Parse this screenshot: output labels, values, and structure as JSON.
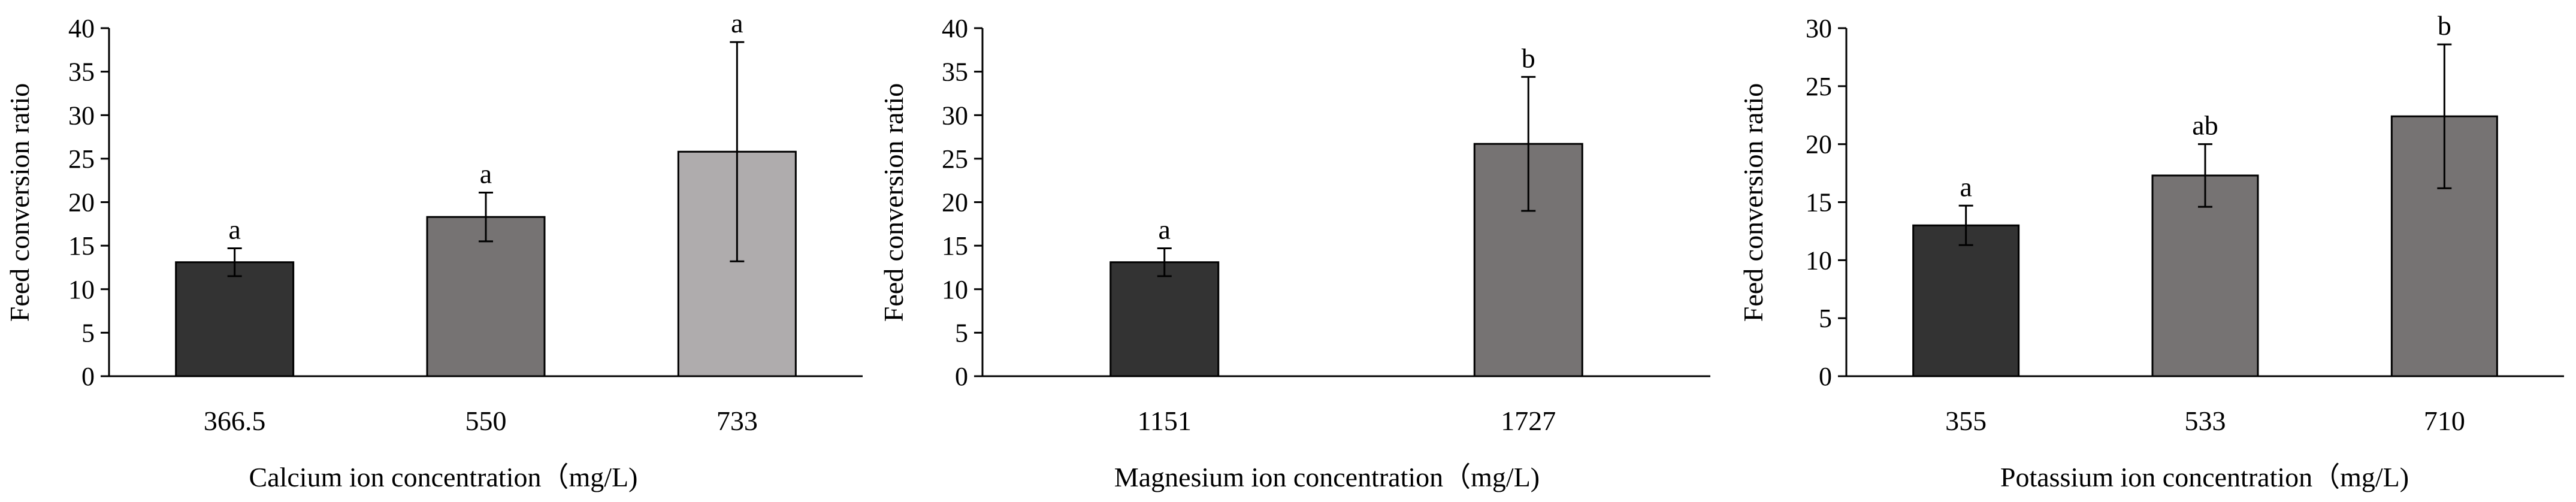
{
  "chart_data": [
    {
      "type": "bar",
      "xlabel": "Calcium ion concentration（mg/L)",
      "ylabel": "Feed conversion ratio",
      "categories": [
        "366.5",
        "550",
        "733"
      ],
      "values": [
        13.1,
        18.3,
        25.8
      ],
      "errors": [
        1.6,
        2.8,
        12.6
      ],
      "significance": [
        "a",
        "a",
        "a"
      ],
      "colors": [
        "#333333",
        "#767373",
        "#afacad"
      ],
      "ylim": [
        0,
        40
      ],
      "yticks": [
        0,
        5,
        10,
        15,
        20,
        25,
        30,
        35,
        40
      ],
      "grid": false,
      "legend": "none"
    },
    {
      "type": "bar",
      "xlabel": "Magnesium ion concentration（mg/L)",
      "ylabel": "Feed conversion ratio",
      "categories": [
        "1151",
        "1727"
      ],
      "values": [
        13.1,
        26.7
      ],
      "errors": [
        1.6,
        7.7
      ],
      "significance": [
        "a",
        "b"
      ],
      "colors": [
        "#333333",
        "#767373"
      ],
      "ylim": [
        0,
        40
      ],
      "yticks": [
        0,
        5,
        10,
        15,
        20,
        25,
        30,
        35,
        40
      ],
      "grid": false,
      "legend": "none"
    },
    {
      "type": "bar",
      "xlabel": "Potassium ion concentration（mg/L)",
      "ylabel": "Feed conversion ratio",
      "categories": [
        "355",
        "533",
        "710"
      ],
      "values": [
        13.0,
        17.3,
        22.4
      ],
      "errors": [
        1.7,
        2.7,
        6.2
      ],
      "significance": [
        "a",
        "ab",
        "b"
      ],
      "colors": [
        "#333333",
        "#767373",
        "#767373"
      ],
      "ylim": [
        0,
        30
      ],
      "yticks": [
        0,
        5,
        10,
        15,
        20,
        25,
        30
      ],
      "grid": false,
      "legend": "none"
    }
  ]
}
